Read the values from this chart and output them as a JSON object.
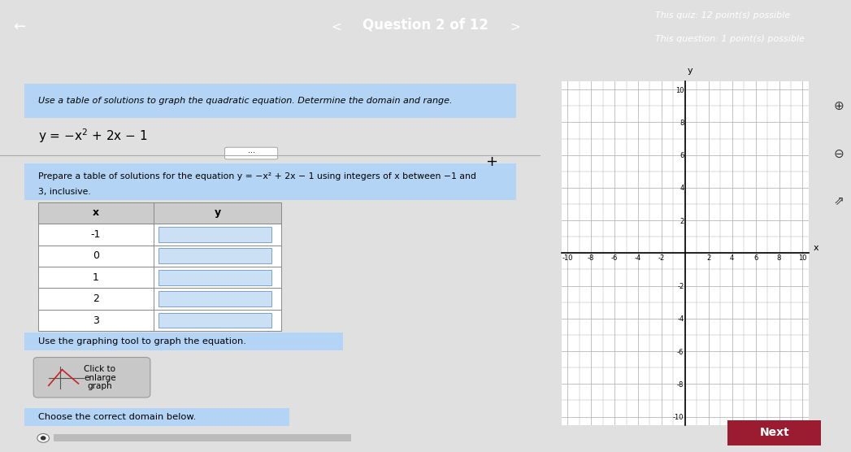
{
  "bg_color": "#e0e0e0",
  "header_bg": "#9b1b30",
  "header_text_color": "#ffffff",
  "header_title": "Question 2 of 12",
  "quiz_info_line1": "This quiz: 12 point(s) possible",
  "quiz_info_line2": "This question: 1 point(s) possible",
  "instruction_text": "Use a table of solutions to graph the quadratic equation. Determine the domain and range.",
  "equation_display": "y = -x² + 2x - 1",
  "table_prompt_line1": "Prepare a table of solutions for the equation y = −x² + 2x − 1 using integers of x between −1 and",
  "table_prompt_line2": "3, inclusive.",
  "graphing_prompt": "Use the graphing tool to graph the equation.",
  "domain_prompt": "Choose the correct domain below.",
  "x_values": [
    -1,
    0,
    1,
    2,
    3
  ],
  "next_button_color": "#9b1b30",
  "next_button_text": "Next",
  "graph_xlim": [
    -10,
    10
  ],
  "graph_ylim": [
    -10,
    10
  ],
  "grid_color": "#aaaaaa",
  "axis_label_x": "x",
  "axis_label_y": "y",
  "left_panel_bg": "#f0f0f0",
  "right_panel_bg": "#cccccc",
  "highlight_color": "#b3d4f5",
  "table_x_header": "x",
  "table_y_header": "y"
}
